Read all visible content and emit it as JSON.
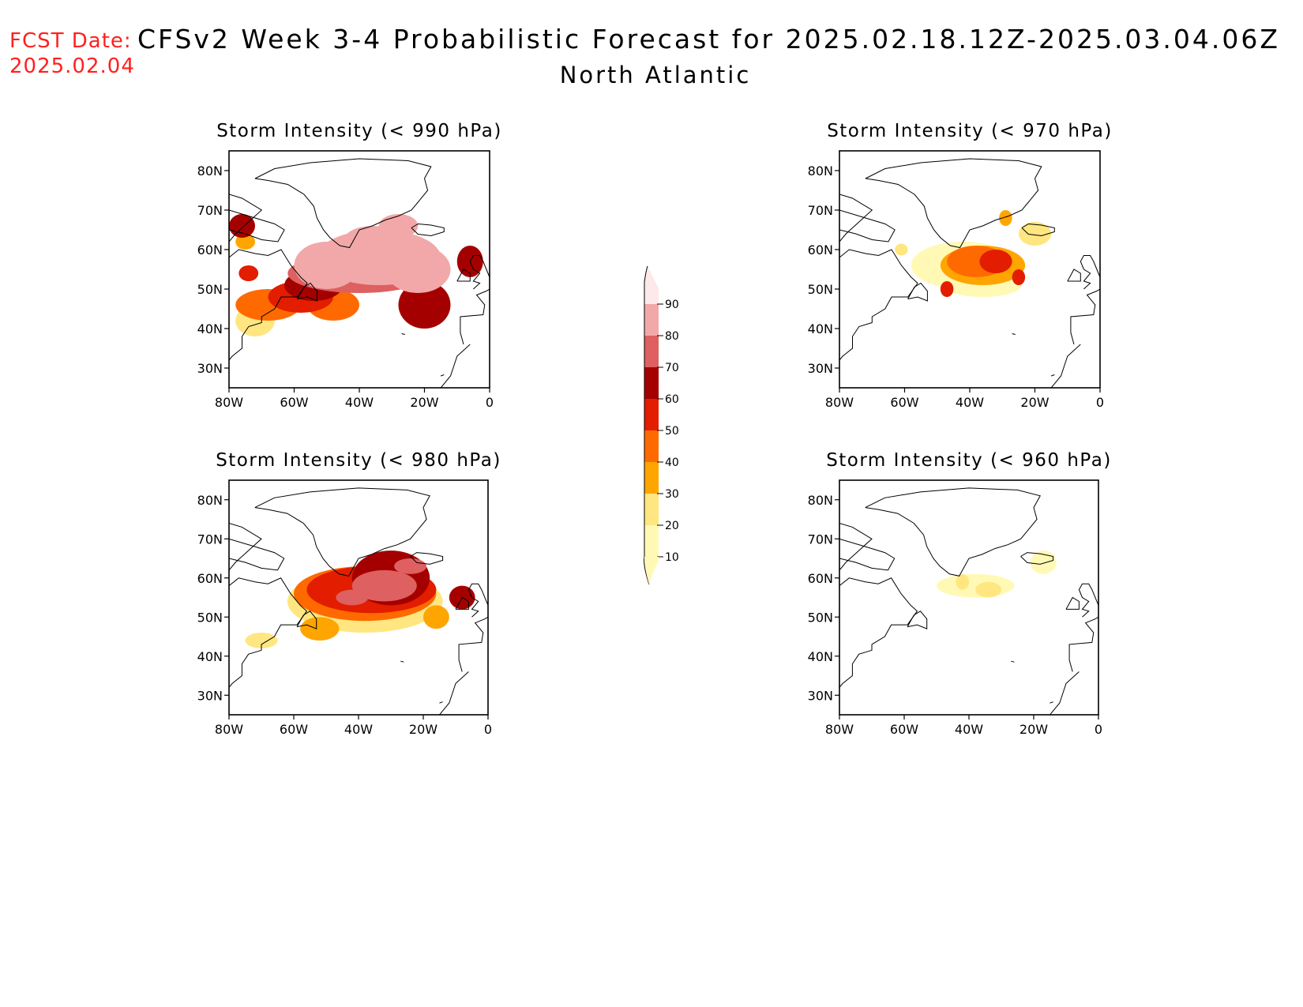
{
  "header": {
    "fcst_label": "FCST Date:",
    "fcst_date": "2025.02.04",
    "title": "CFSv2 Week 3-4 Probabilistic Forecast for 2025.02.18.12Z-2025.03.04.06Z",
    "region": "North Atlantic"
  },
  "axes": {
    "lat_ticks": [
      80,
      70,
      60,
      50,
      40,
      30
    ],
    "lat_labels": [
      "80N",
      "70N",
      "60N",
      "50N",
      "40N",
      "30N"
    ],
    "lon_ticks": [
      -80,
      -60,
      -40,
      -20,
      0
    ],
    "lon_labels": [
      "80W",
      "60W",
      "40W",
      "20W",
      "0"
    ],
    "lon_range": [
      -80,
      0
    ],
    "lat_range": [
      25,
      85
    ]
  },
  "colorbar": {
    "levels": [
      10,
      20,
      30,
      40,
      50,
      60,
      70,
      80,
      90
    ],
    "labels": [
      "10",
      "20",
      "30",
      "40",
      "50",
      "60",
      "70",
      "80",
      "90"
    ],
    "colors": [
      "#fff9b5",
      "#ffe680",
      "#ffa500",
      "#ff6a00",
      "#e21d00",
      "#a50000",
      "#de6060",
      "#f2a8a8",
      "#fde8ea"
    ]
  },
  "panels": [
    {
      "id": "p990",
      "title": "Storm Intensity (< 990 hPa)",
      "blobs": [
        {
          "lon": -34,
          "lat": 58,
          "rx": 19,
          "ry": 7,
          "value": 86
        },
        {
          "lon": -50,
          "lat": 56,
          "rx": 10,
          "ry": 6,
          "value": 82
        },
        {
          "lon": -22,
          "lat": 55,
          "rx": 10,
          "ry": 6,
          "value": 80
        },
        {
          "lon": -40,
          "lat": 54,
          "rx": 22,
          "ry": 5,
          "value": 72
        },
        {
          "lon": -54,
          "lat": 51,
          "rx": 9,
          "ry": 4,
          "value": 64
        },
        {
          "lon": -58,
          "lat": 48,
          "rx": 10,
          "ry": 4,
          "value": 56
        },
        {
          "lon": -68,
          "lat": 46,
          "rx": 10,
          "ry": 4,
          "value": 42
        },
        {
          "lon": -72,
          "lat": 42,
          "rx": 6,
          "ry": 4,
          "value": 25
        },
        {
          "lon": -48,
          "lat": 46,
          "rx": 8,
          "ry": 4,
          "value": 45
        },
        {
          "lon": -20,
          "lat": 46,
          "rx": 8,
          "ry": 6,
          "value": 66
        },
        {
          "lon": -76,
          "lat": 66,
          "rx": 4,
          "ry": 3,
          "value": 65
        },
        {
          "lon": -75,
          "lat": 62,
          "rx": 3,
          "ry": 2,
          "value": 30
        },
        {
          "lon": -6,
          "lat": 57,
          "rx": 4,
          "ry": 4,
          "value": 68
        },
        {
          "lon": -36,
          "lat": 62,
          "rx": 9,
          "ry": 4,
          "value": 88
        },
        {
          "lon": -28,
          "lat": 66,
          "rx": 6,
          "ry": 3,
          "value": 84
        },
        {
          "lon": -74,
          "lat": 54,
          "rx": 3,
          "ry": 2,
          "value": 50
        }
      ]
    },
    {
      "id": "p970",
      "title": "Storm Intensity (< 970 hPa)",
      "blobs": [
        {
          "lon": -42,
          "lat": 56,
          "rx": 16,
          "ry": 6,
          "value": 18
        },
        {
          "lon": -36,
          "lat": 56,
          "rx": 13,
          "ry": 5,
          "value": 35
        },
        {
          "lon": -38,
          "lat": 57,
          "rx": 9,
          "ry": 4,
          "value": 45
        },
        {
          "lon": -32,
          "lat": 57,
          "rx": 5,
          "ry": 3,
          "value": 55
        },
        {
          "lon": -36,
          "lat": 51,
          "rx": 12,
          "ry": 3,
          "value": 15
        },
        {
          "lon": -20,
          "lat": 64,
          "rx": 5,
          "ry": 3,
          "value": 22
        },
        {
          "lon": -29,
          "lat": 68,
          "rx": 2,
          "ry": 2,
          "value": 32
        },
        {
          "lon": -47,
          "lat": 50,
          "rx": 2,
          "ry": 2,
          "value": 55
        },
        {
          "lon": -25,
          "lat": 53,
          "rx": 2,
          "ry": 2,
          "value": 55
        },
        {
          "lon": -61,
          "lat": 60,
          "rx": 2,
          "ry": 1.5,
          "value": 20
        }
      ]
    },
    {
      "id": "p980",
      "title": "Storm Intensity (< 980 hPa)",
      "blobs": [
        {
          "lon": -38,
          "lat": 54,
          "rx": 24,
          "ry": 8,
          "value": 25
        },
        {
          "lon": -38,
          "lat": 56,
          "rx": 22,
          "ry": 7,
          "value": 42
        },
        {
          "lon": -36,
          "lat": 57,
          "rx": 20,
          "ry": 6,
          "value": 55
        },
        {
          "lon": -30,
          "lat": 60,
          "rx": 12,
          "ry": 7,
          "value": 62
        },
        {
          "lon": -32,
          "lat": 58,
          "rx": 10,
          "ry": 4,
          "value": 74
        },
        {
          "lon": -42,
          "lat": 55,
          "rx": 5,
          "ry": 2,
          "value": 76
        },
        {
          "lon": -24,
          "lat": 63,
          "rx": 5,
          "ry": 2,
          "value": 78
        },
        {
          "lon": -8,
          "lat": 55,
          "rx": 4,
          "ry": 3,
          "value": 60
        },
        {
          "lon": -70,
          "lat": 44,
          "rx": 5,
          "ry": 2,
          "value": 20
        },
        {
          "lon": -52,
          "lat": 47,
          "rx": 6,
          "ry": 3,
          "value": 35
        },
        {
          "lon": -16,
          "lat": 50,
          "rx": 4,
          "ry": 3,
          "value": 30
        }
      ]
    },
    {
      "id": "p960",
      "title": "Storm Intensity (< 960 hPa)",
      "blobs": [
        {
          "lon": -38,
          "lat": 58,
          "rx": 12,
          "ry": 3,
          "value": 14
        },
        {
          "lon": -34,
          "lat": 57,
          "rx": 4,
          "ry": 2,
          "value": 22
        },
        {
          "lon": -17,
          "lat": 64,
          "rx": 4,
          "ry": 3,
          "value": 14
        },
        {
          "lon": -42,
          "lat": 59,
          "rx": 2,
          "ry": 2,
          "value": 25
        }
      ]
    }
  ]
}
